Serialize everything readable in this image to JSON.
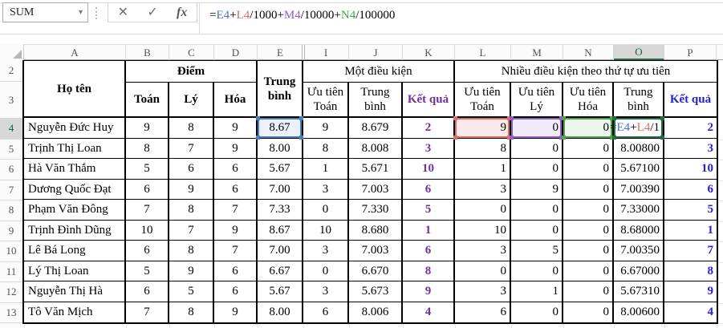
{
  "formula_bar": {
    "name_box": "SUM",
    "icons": {
      "dropdown": "name-box-dropdown",
      "cancel": "✕",
      "confirm": "✓",
      "insert_function": "fx"
    },
    "parts": [
      {
        "text": "=",
        "color": "#000000"
      },
      {
        "text": "E4",
        "color": "#4a6fd1"
      },
      {
        "text": "+",
        "color": "#000000"
      },
      {
        "text": "L4",
        "color": "#e0696b"
      },
      {
        "text": "/1000+",
        "color": "#000000"
      },
      {
        "text": "M4",
        "color": "#9d57d3"
      },
      {
        "text": "/10000+",
        "color": "#000000"
      },
      {
        "text": "N4",
        "color": "#4aa04a"
      },
      {
        "text": "/100000",
        "color": "#000000"
      }
    ]
  },
  "sheet": {
    "columns": [
      "A",
      "B",
      "C",
      "D",
      "E",
      "I",
      "J",
      "K",
      "L",
      "M",
      "N",
      "O",
      "P"
    ],
    "selected_column": "O",
    "row_numbers": [
      2,
      3,
      4,
      5,
      6,
      7,
      8,
      9,
      10,
      11,
      12,
      13
    ],
    "partial_row_number": "14",
    "selected_row": 4,
    "hidden_columns_between": [
      "E",
      "I"
    ],
    "table": {
      "header": {
        "ho_ten": "Họ tên",
        "diem": "Điểm",
        "toan": "Toán",
        "ly": "Lý",
        "hoa": "Hóa",
        "trung_binh": "Trung bình",
        "mot_dieu_kien": "Một điều kiện",
        "uu_tien_toan": "Ưu tiên Toán",
        "trung_binh_mot": "Trung bình",
        "ket_qua_mot": "Kết quả",
        "nhieu_dieu_kien": "Nhiều điều kiện theo thứ tự ưu tiên",
        "uu_tien_toan_n": "Ưu tiên Toán",
        "uu_tien_ly": "Ưu tiên Lý",
        "uu_tien_hoa": "Ưu tiên Hóa",
        "trung_binh_nhieu": "Trung bình",
        "ket_qua_nhieu": "Kết quả"
      }
    },
    "rows": [
      {
        "name": "Nguyễn Đức Huy",
        "toan": "9",
        "ly": "8",
        "hoa": "9",
        "tb": "8.67",
        "uu_toan": "9",
        "tb_mot": "8.679",
        "kq_mot": "2",
        "uu_toan_n": "9",
        "uu_ly": "0",
        "uu_hoa": "0",
        "tb_nhieu": "",
        "kq_nhieu": "2"
      },
      {
        "name": "Trịnh Thị Loan",
        "toan": "8",
        "ly": "7",
        "hoa": "9",
        "tb": "8.00",
        "uu_toan": "8",
        "tb_mot": "8.008",
        "kq_mot": "3",
        "uu_toan_n": "8",
        "uu_ly": "0",
        "uu_hoa": "0",
        "tb_nhieu": "8.00800",
        "kq_nhieu": "3"
      },
      {
        "name": "Hà Văn Thắm",
        "toan": "5",
        "ly": "6",
        "hoa": "6",
        "tb": "5.67",
        "uu_toan": "1",
        "tb_mot": "5.671",
        "kq_mot": "10",
        "uu_toan_n": "1",
        "uu_ly": "0",
        "uu_hoa": "0",
        "tb_nhieu": "5.67100",
        "kq_nhieu": "10"
      },
      {
        "name": "Dương Quốc Đạt",
        "toan": "6",
        "ly": "9",
        "hoa": "6",
        "tb": "7.00",
        "uu_toan": "3",
        "tb_mot": "7.003",
        "kq_mot": "6",
        "uu_toan_n": "3",
        "uu_ly": "9",
        "uu_hoa": "0",
        "tb_nhieu": "7.00390",
        "kq_nhieu": "6"
      },
      {
        "name": "Phạm Văn Đông",
        "toan": "7",
        "ly": "8",
        "hoa": "7",
        "tb": "7.33",
        "uu_toan": "0",
        "tb_mot": "7.330",
        "kq_mot": "5",
        "uu_toan_n": "0",
        "uu_ly": "0",
        "uu_hoa": "0",
        "tb_nhieu": "7.33000",
        "kq_nhieu": "5"
      },
      {
        "name": "Trịnh Đình Dũng",
        "toan": "10",
        "ly": "7",
        "hoa": "9",
        "tb": "8.67",
        "uu_toan": "10",
        "tb_mot": "8.680",
        "kq_mot": "1",
        "uu_toan_n": "10",
        "uu_ly": "0",
        "uu_hoa": "0",
        "tb_nhieu": "8.68000",
        "kq_nhieu": "1"
      },
      {
        "name": "Lê Bá Long",
        "toan": "6",
        "ly": "8",
        "hoa": "7",
        "tb": "7.00",
        "uu_toan": "3",
        "tb_mot": "7.003",
        "kq_mot": "6",
        "uu_toan_n": "3",
        "uu_ly": "5",
        "uu_hoa": "0",
        "tb_nhieu": "7.00350",
        "kq_nhieu": "7"
      },
      {
        "name": "Lý Thị Loan",
        "toan": "5",
        "ly": "9",
        "hoa": "6",
        "tb": "6.67",
        "uu_toan": "0",
        "tb_mot": "6.670",
        "kq_mot": "8",
        "uu_toan_n": "0",
        "uu_ly": "0",
        "uu_hoa": "0",
        "tb_nhieu": "6.67000",
        "kq_nhieu": "8"
      },
      {
        "name": "Nguyễn Thị Hà",
        "toan": "6",
        "ly": "5",
        "hoa": "6",
        "tb": "5.67",
        "uu_toan": "3",
        "tb_mot": "5.673",
        "kq_mot": "9",
        "uu_toan_n": "3",
        "uu_ly": "1",
        "uu_hoa": "0",
        "tb_nhieu": "5.67310",
        "kq_nhieu": "9"
      },
      {
        "name": "Tô Văn Mịch",
        "toan": "7",
        "ly": "8",
        "hoa": "9",
        "tb": "8.00",
        "uu_toan": "6",
        "tb_mot": "8.006",
        "kq_mot": "4",
        "uu_toan_n": "6",
        "uu_ly": "0",
        "uu_hoa": "0",
        "tb_nhieu": "8.00600",
        "kq_nhieu": "4"
      }
    ],
    "editing_cell": {
      "address": "O4",
      "parts": [
        {
          "text": "=",
          "color": "#000000"
        },
        {
          "text": "E4",
          "color": "#4a6fd1"
        },
        {
          "text": "+",
          "color": "#000000"
        },
        {
          "text": "L4",
          "color": "#e0696b"
        },
        {
          "text": "/1",
          "color": "#000000"
        }
      ]
    },
    "highlighted_refs": {
      "E4": "blue",
      "L4": "red",
      "M4": "purple",
      "N4": "green",
      "O4": "edit-green"
    },
    "colors": {
      "result_one_condition": "#7030a0",
      "result_multi_condition": "#2222dd",
      "accent_green": "#1f7145",
      "ref_blue": "#4a7ebb",
      "ref_red": "#e06c6c",
      "ref_purple": "#8e5fc8",
      "ref_green": "#4ba34b"
    }
  }
}
